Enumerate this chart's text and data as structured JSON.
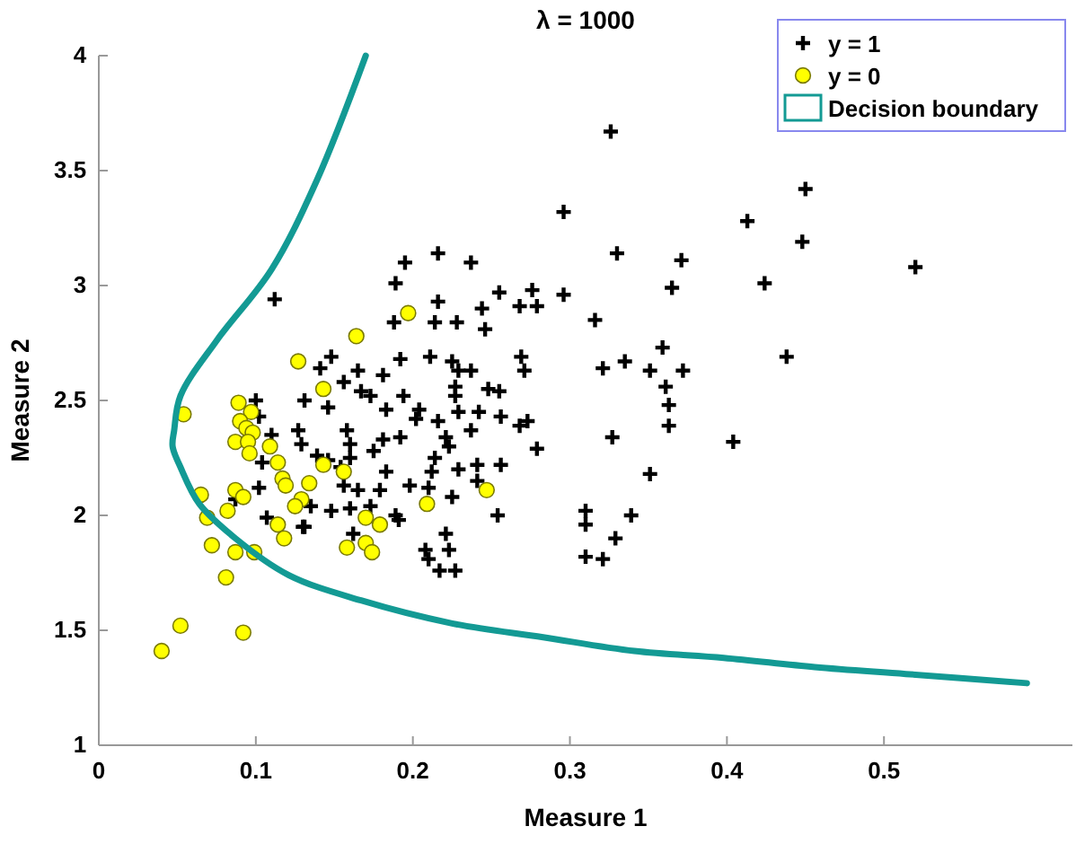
{
  "chart_data": {
    "type": "scatter",
    "title": "λ = 1000",
    "xlabel": "Measure 1",
    "ylabel": "Measure 2",
    "xlim": [
      0,
      0.62
    ],
    "ylim": [
      1,
      4
    ],
    "xticks": [
      0,
      0.1,
      0.2,
      0.3,
      0.4,
      0.5
    ],
    "yticks": [
      1,
      1.5,
      2,
      2.5,
      3,
      3.5,
      4
    ],
    "grid": false,
    "legend": "top right",
    "series": [
      {
        "name": "y = 1",
        "marker": "cross",
        "color": "#000000",
        "x": [
          0.296,
          0.33,
          0.195,
          0.216,
          0.237,
          0.189,
          0.255,
          0.276,
          0.268,
          0.279,
          0.296,
          0.216,
          0.244,
          0.188,
          0.214,
          0.228,
          0.246,
          0.316,
          0.112,
          0.148,
          0.141,
          0.165,
          0.181,
          0.192,
          0.211,
          0.225,
          0.229,
          0.237,
          0.269,
          0.271,
          0.321,
          0.335,
          0.131,
          0.146,
          0.156,
          0.167,
          0.173,
          0.183,
          0.194,
          0.204,
          0.202,
          0.216,
          0.229,
          0.242,
          0.248,
          0.255,
          0.256,
          0.268,
          0.273,
          0.227,
          0.227,
          0.127,
          0.129,
          0.158,
          0.16,
          0.181,
          0.192,
          0.221,
          0.223,
          0.214,
          0.237,
          0.279,
          0.327,
          0.139,
          0.146,
          0.16,
          0.175,
          0.183,
          0.212,
          0.229,
          0.241,
          0.256,
          0.156,
          0.165,
          0.179,
          0.198,
          0.21,
          0.225,
          0.241,
          0.254,
          0.135,
          0.131,
          0.148,
          0.16,
          0.173,
          0.189,
          0.221,
          0.223,
          0.208,
          0.21,
          0.217,
          0.227,
          0.31,
          0.31,
          0.329,
          0.31,
          0.321,
          0.162,
          0.191,
          0.154,
          0.1,
          0.102,
          0.11,
          0.104,
          0.102,
          0.107,
          0.13,
          0.087,
          0.326,
          0.371,
          0.365,
          0.413,
          0.45,
          0.448,
          0.424,
          0.52,
          0.359,
          0.351,
          0.372,
          0.361,
          0.363,
          0.363,
          0.438,
          0.404,
          0.351,
          0.339
        ],
        "values": [
          3.32,
          3.14,
          3.1,
          3.14,
          3.1,
          3.01,
          2.97,
          2.98,
          2.91,
          2.91,
          2.96,
          2.93,
          2.9,
          2.84,
          2.84,
          2.84,
          2.81,
          2.85,
          2.94,
          2.69,
          2.64,
          2.63,
          2.61,
          2.68,
          2.69,
          2.67,
          2.63,
          2.63,
          2.69,
          2.63,
          2.64,
          2.67,
          2.5,
          2.47,
          2.58,
          2.54,
          2.52,
          2.46,
          2.52,
          2.46,
          2.42,
          2.41,
          2.45,
          2.45,
          2.55,
          2.54,
          2.43,
          2.39,
          2.41,
          2.52,
          2.56,
          2.37,
          2.31,
          2.37,
          2.31,
          2.33,
          2.34,
          2.34,
          2.3,
          2.25,
          2.37,
          2.29,
          2.34,
          2.26,
          2.24,
          2.25,
          2.28,
          2.19,
          2.19,
          2.2,
          2.22,
          2.22,
          2.13,
          2.11,
          2.11,
          2.13,
          2.12,
          2.08,
          2.15,
          2.0,
          2.04,
          1.95,
          2.02,
          2.03,
          2.04,
          2.0,
          1.92,
          1.85,
          1.85,
          1.81,
          1.76,
          1.76,
          2.02,
          1.96,
          1.9,
          1.82,
          1.81,
          1.92,
          1.98,
          2.21,
          2.5,
          2.43,
          2.35,
          2.23,
          2.12,
          1.99,
          1.95,
          2.07,
          3.67,
          3.11,
          2.99,
          3.28,
          3.42,
          3.19,
          3.01,
          3.08,
          2.73,
          2.63,
          2.63,
          2.56,
          2.48,
          2.39,
          2.69,
          2.32,
          2.18,
          2.0
        ]
      },
      {
        "name": "y = 0",
        "marker": "circle",
        "color": "#ffff00",
        "x": [
          0.054,
          0.089,
          0.097,
          0.09,
          0.094,
          0.098,
          0.087,
          0.095,
          0.109,
          0.096,
          0.114,
          0.065,
          0.087,
          0.092,
          0.069,
          0.082,
          0.117,
          0.119,
          0.134,
          0.129,
          0.125,
          0.114,
          0.118,
          0.072,
          0.087,
          0.099,
          0.081,
          0.052,
          0.092,
          0.04,
          0.143,
          0.156,
          0.17,
          0.179,
          0.158,
          0.17,
          0.174,
          0.209,
          0.143,
          0.127,
          0.164,
          0.197,
          0.247
        ],
        "values": [
          2.44,
          2.49,
          2.45,
          2.41,
          2.38,
          2.36,
          2.32,
          2.32,
          2.3,
          2.27,
          2.23,
          2.09,
          2.11,
          2.08,
          1.99,
          2.02,
          2.16,
          2.13,
          2.14,
          2.07,
          2.04,
          1.96,
          1.9,
          1.87,
          1.84,
          1.84,
          1.73,
          1.52,
          1.49,
          1.41,
          2.22,
          2.19,
          1.99,
          1.96,
          1.86,
          1.88,
          1.84,
          2.05,
          2.55,
          2.67,
          2.78,
          2.88,
          2.11
        ]
      },
      {
        "name": "Decision boundary",
        "type": "line",
        "marker": "none",
        "line_style": "solid",
        "color": "#139a94",
        "x": [
          0.17,
          0.139,
          0.11,
          0.075,
          0.052,
          0.048,
          0.047,
          0.052,
          0.064,
          0.087,
          0.121,
          0.167,
          0.225,
          0.283,
          0.341,
          0.398,
          0.456,
          0.514,
          0.591
        ],
        "values": [
          4.0,
          3.46,
          3.07,
          2.76,
          2.52,
          2.37,
          2.3,
          2.21,
          2.05,
          1.9,
          1.74,
          1.63,
          1.53,
          1.47,
          1.41,
          1.38,
          1.34,
          1.31,
          1.27
        ]
      }
    ]
  }
}
